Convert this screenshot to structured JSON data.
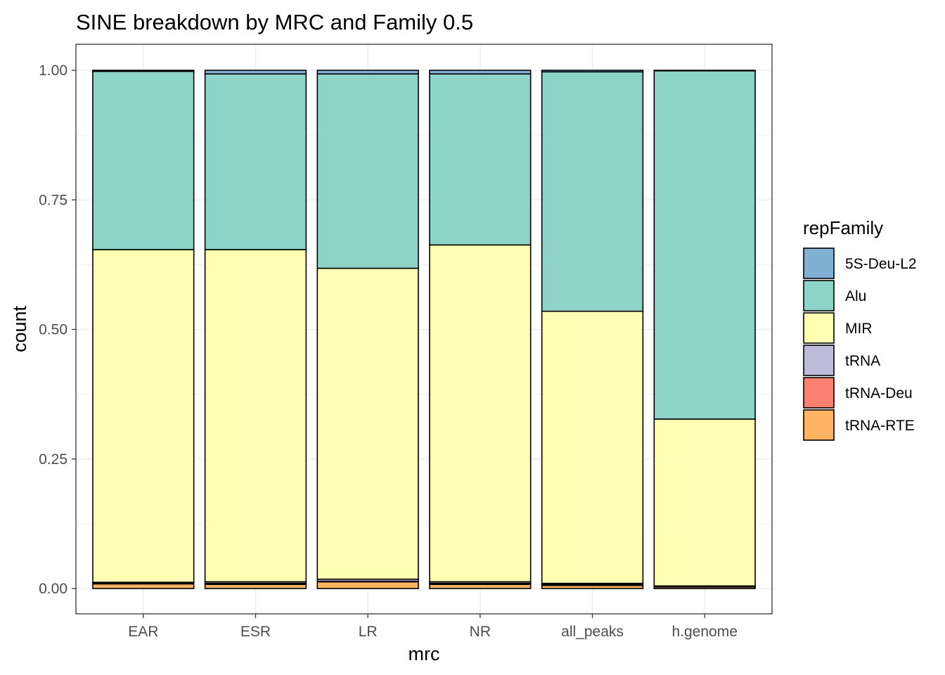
{
  "chart_data": {
    "type": "bar",
    "stacked": true,
    "title": "SINE breakdown by MRC and Family 0.5",
    "xlabel": "mrc",
    "ylabel": "count",
    "ylim": [
      -0.05,
      1.05
    ],
    "y_ticks": [
      "0.00",
      "0.25",
      "0.50",
      "0.75",
      "1.00"
    ],
    "categories": [
      "EAR",
      "ESR",
      "LR",
      "NR",
      "all_peaks",
      "h.genome"
    ],
    "legend_title": "repFamily",
    "legend_position": "right",
    "grid": true,
    "theme": "bw",
    "stack_order_bottom_to_top": [
      "tRNA-RTE",
      "tRNA-Deu",
      "tRNA",
      "MIR",
      "Alu",
      "5S-Deu-L2"
    ],
    "series": [
      {
        "name": "5S-Deu-L2",
        "color": "#80b1d3",
        "values": [
          0.002,
          0.007,
          0.007,
          0.007,
          0.003,
          0.001
        ]
      },
      {
        "name": "Alu",
        "color": "#8dd3c7",
        "values": [
          0.344,
          0.339,
          0.375,
          0.33,
          0.462,
          0.672
        ]
      },
      {
        "name": "MIR",
        "color": "#ffffb3",
        "values": [
          0.642,
          0.641,
          0.6,
          0.65,
          0.525,
          0.322
        ]
      },
      {
        "name": "tRNA",
        "color": "#bebada",
        "values": [
          0.002,
          0.003,
          0.004,
          0.003,
          0.002,
          0.001
        ]
      },
      {
        "name": "tRNA-Deu",
        "color": "#fb8072",
        "values": [
          0.001,
          0.002,
          0.001,
          0.002,
          0.002,
          0.001
        ]
      },
      {
        "name": "tRNA-RTE",
        "color": "#fdb462",
        "values": [
          0.009,
          0.008,
          0.013,
          0.008,
          0.006,
          0.003
        ]
      }
    ]
  }
}
